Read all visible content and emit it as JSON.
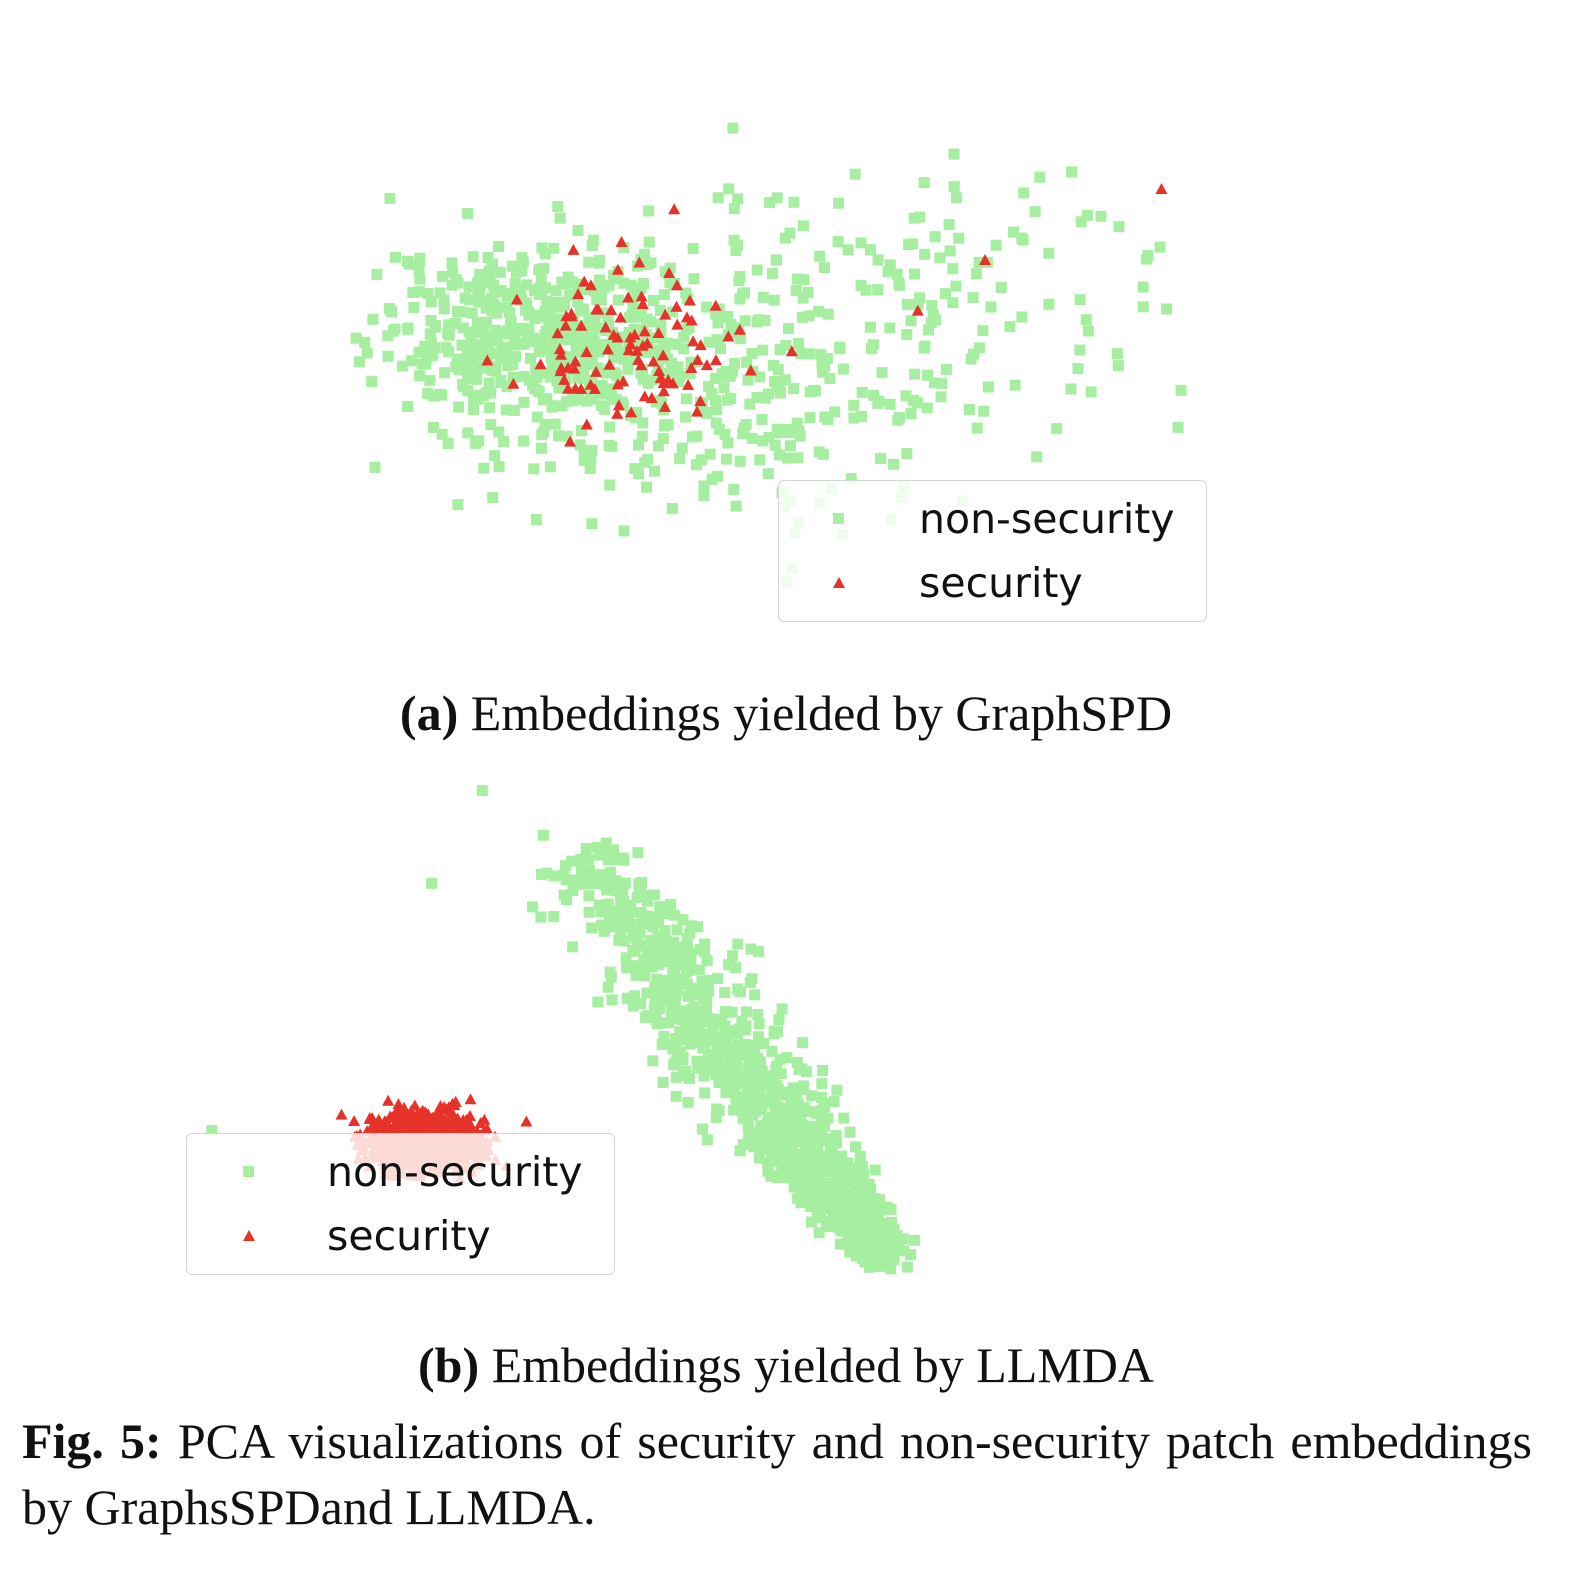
{
  "chart_data": [
    {
      "type": "scatter",
      "title": "",
      "xlabel": "",
      "ylabel": "",
      "grid": false,
      "axes_visible": false,
      "legend": {
        "placement": "lower-right",
        "entries": [
          {
            "label": "non-security",
            "marker": "square",
            "color": "#a6eea0"
          },
          {
            "label": "security",
            "marker": "triangle",
            "color": "#e63228"
          }
        ]
      },
      "xlim": [
        0,
        100
      ],
      "ylim": [
        0,
        100
      ],
      "series": [
        {
          "name": "non-security",
          "distribution": "broad diffuse cloud, densest at left-center, sparse tail toward upper right",
          "generator": {
            "seed": 11,
            "count": 900,
            "clusters": [
              {
                "weight": 0.55,
                "cx": 22,
                "cy": 58,
                "sx": 10,
                "sy": 9,
                "rot": 0
              },
              {
                "weight": 0.3,
                "cx": 42,
                "cy": 45,
                "sx": 14,
                "sy": 12,
                "rot": 0
              },
              {
                "weight": 0.15,
                "cx": 70,
                "cy": 68,
                "sx": 18,
                "sy": 12,
                "rot": 0
              }
            ]
          }
        },
        {
          "name": "security",
          "distribution": "mixed inside the non-security cloud near its center, a few outliers to the upper right",
          "generator": {
            "seed": 23,
            "count": 95,
            "clusters": [
              {
                "weight": 1.0,
                "cx": 32,
                "cy": 54,
                "sx": 6,
                "sy": 7,
                "rot": 0
              }
            ]
          },
          "outliers": [
            [
              38,
              82
            ],
            [
              75,
              72
            ],
            [
              67,
              62
            ],
            [
              96,
              86
            ],
            [
              52,
              54
            ],
            [
              26,
              74
            ]
          ]
        }
      ]
    },
    {
      "type": "scatter",
      "title": "",
      "xlabel": "",
      "ylabel": "",
      "grid": false,
      "axes_visible": false,
      "legend": {
        "placement": "lower-left",
        "entries": [
          {
            "label": "non-security",
            "marker": "square",
            "color": "#a6eea0"
          },
          {
            "label": "security",
            "marker": "triangle",
            "color": "#e63228"
          }
        ]
      },
      "xlim": [
        0,
        100
      ],
      "ylim": [
        0,
        100
      ],
      "series": [
        {
          "name": "non-security",
          "distribution": "elongated diagonal band from upper-left-center to lower-right",
          "generator": {
            "seed": 37,
            "count": 1000,
            "band": {
              "x0": 45,
              "y0": 85,
              "x1": 82,
              "y1": 4,
              "width": 3.6,
              "sparse_top": true
            }
          },
          "outliers": [
            [
              2,
              30
            ],
            [
              34,
              96
            ],
            [
              28,
              78
            ]
          ]
        },
        {
          "name": "security",
          "distribution": "very dense compact cluster at left-center, well separated from non-security",
          "generator": {
            "seed": 51,
            "count": 1100,
            "clusters": [
              {
                "weight": 1.0,
                "cx": 27,
                "cy": 28,
                "sx": 3.2,
                "sy": 2.6,
                "rot": 0
              }
            ]
          }
        }
      ]
    }
  ],
  "subcaptions": {
    "a": {
      "tag": "(a)",
      "text": "Embeddings yielded by GraphSPD"
    },
    "b": {
      "tag": "(b)",
      "text": "Embeddings yielded by ",
      "sc": "LLMDA"
    }
  },
  "caption": {
    "label": "Fig. 5:",
    "text": " PCA visualizations of security and non-security patch embeddings by GraphsSPDand ",
    "sc": "LLMDA",
    "end": "."
  }
}
